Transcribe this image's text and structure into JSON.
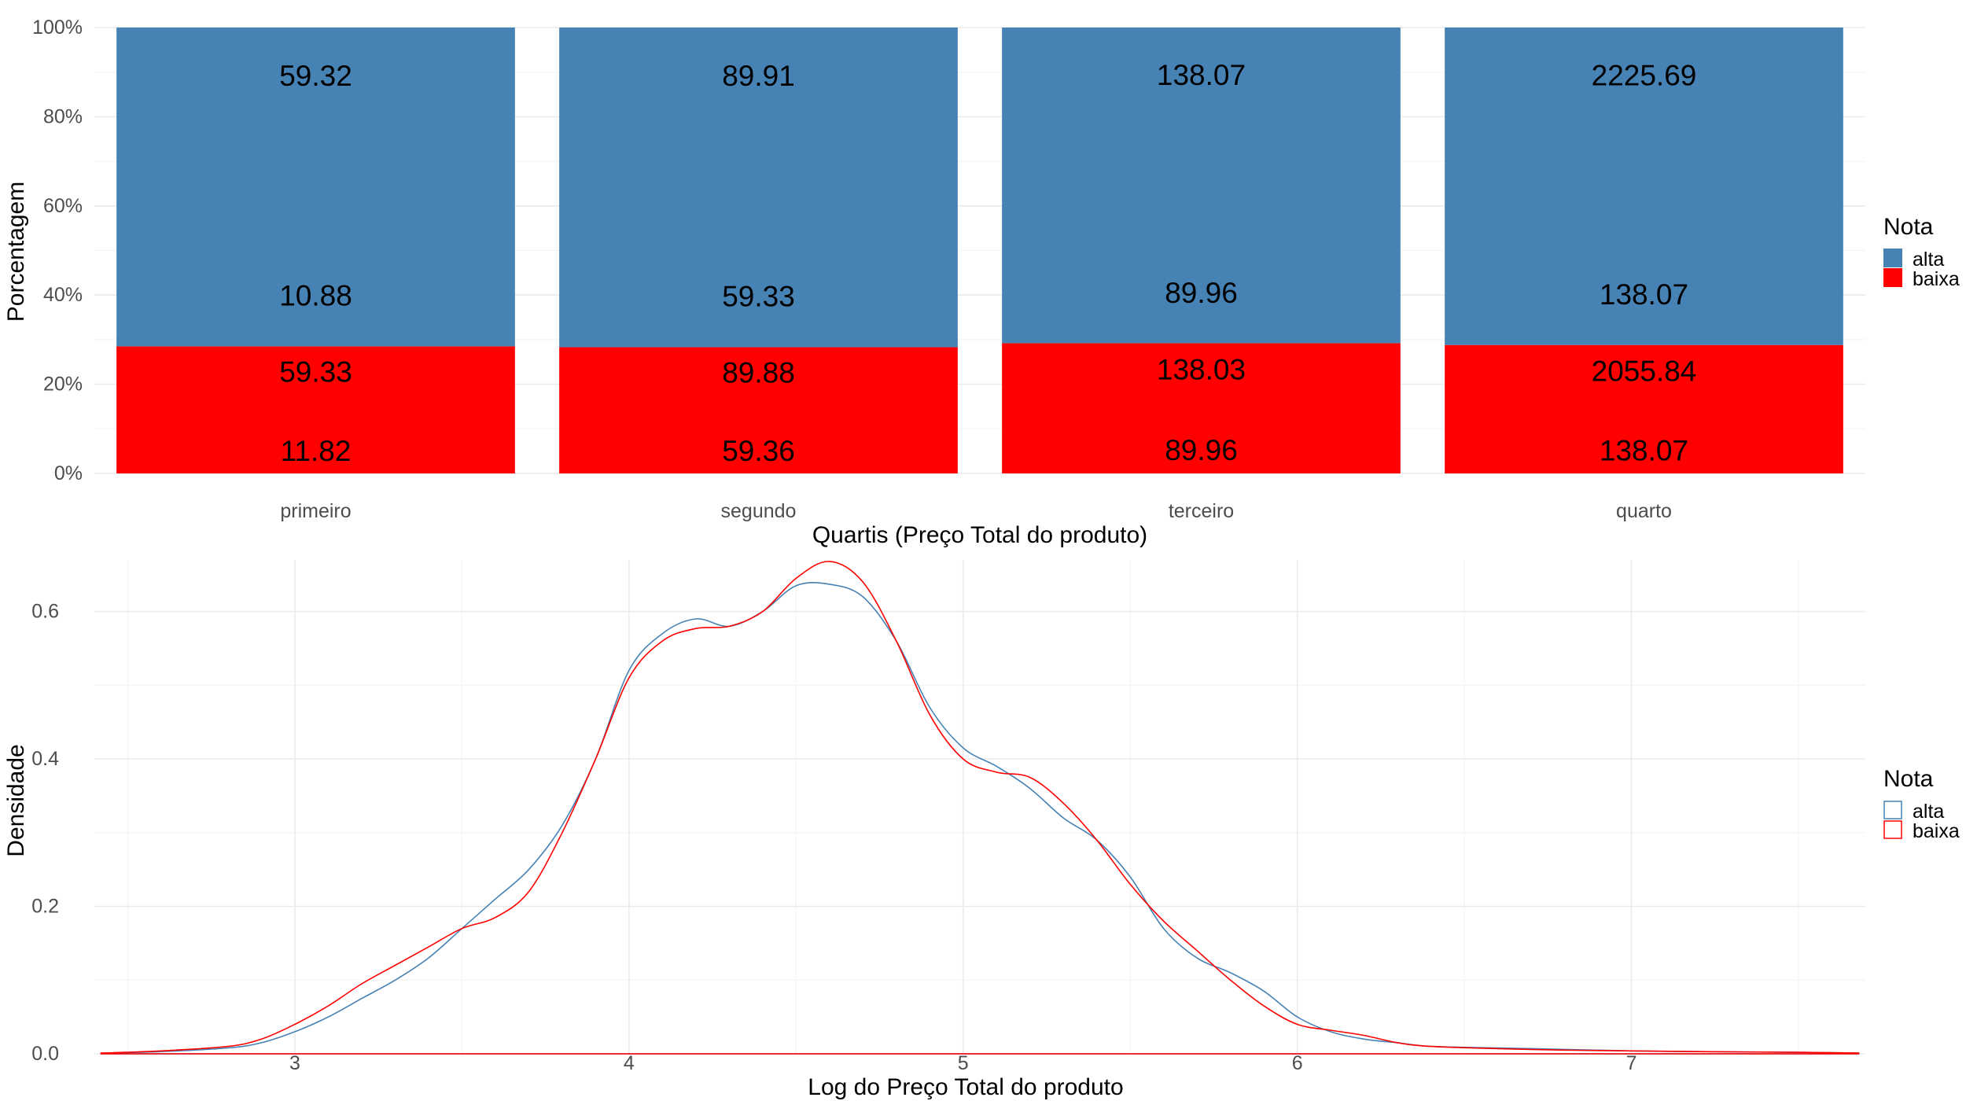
{
  "chart_data": [
    {
      "type": "bar",
      "stacked": "percent",
      "title": "",
      "xlabel": "Quartis (Preço Total do produto)",
      "ylabel": "Porcentagem",
      "ylim": [
        0,
        100
      ],
      "y_ticks": [
        "0%",
        "20%",
        "40%",
        "60%",
        "80%",
        "100%"
      ],
      "y_tick_values": [
        0,
        20,
        40,
        60,
        80,
        100
      ],
      "categories": [
        "primeiro",
        "segundo",
        "terceiro",
        "quarto"
      ],
      "series": [
        {
          "name": "baixa",
          "color": "#ff0000",
          "values": [
            28.5,
            28.3,
            29.2,
            28.8
          ],
          "labels": [
            [
              "11.82",
              "59.33"
            ],
            [
              "59.36",
              "89.88"
            ],
            [
              "89.96",
              "138.03"
            ],
            [
              "138.07",
              "2055.84"
            ]
          ]
        },
        {
          "name": "alta",
          "color": "#4682b4",
          "values": [
            71.5,
            71.7,
            70.8,
            71.2
          ],
          "labels": [
            [
              "10.88",
              "59.32"
            ],
            [
              "59.33",
              "89.91"
            ],
            [
              "89.96",
              "138.07"
            ],
            [
              "138.07",
              "2225.69"
            ]
          ]
        }
      ],
      "legend": {
        "title": "Nota",
        "position": "right",
        "entries": [
          {
            "label": "alta",
            "color": "#4682b4"
          },
          {
            "label": "baixa",
            "color": "#ff0000"
          }
        ]
      },
      "grid": true
    },
    {
      "type": "line",
      "subtype": "density",
      "title": "",
      "xlabel": "Log do Preço Total do produto",
      "ylabel": "Densidade",
      "xlim": [
        2.4,
        7.7
      ],
      "ylim": [
        0,
        0.67
      ],
      "x_ticks": [
        "3",
        "4",
        "5",
        "6",
        "7"
      ],
      "x_tick_values": [
        3,
        4,
        5,
        6,
        7
      ],
      "y_ticks": [
        "0.0",
        "0.2",
        "0.4",
        "0.6"
      ],
      "y_tick_values": [
        0,
        0.2,
        0.4,
        0.6
      ],
      "series": [
        {
          "name": "alta",
          "color": "#4682b4",
          "x": [
            2.42,
            2.6,
            2.8,
            2.9,
            3.0,
            3.1,
            3.2,
            3.3,
            3.4,
            3.5,
            3.6,
            3.7,
            3.8,
            3.9,
            4.0,
            4.1,
            4.2,
            4.3,
            4.4,
            4.5,
            4.6,
            4.7,
            4.8,
            4.9,
            5.0,
            5.1,
            5.2,
            5.3,
            5.4,
            5.5,
            5.6,
            5.7,
            5.8,
            5.9,
            6.0,
            6.1,
            6.2,
            6.3,
            6.4,
            6.6,
            6.8,
            7.0,
            7.2,
            7.5,
            7.68
          ],
          "y": [
            0.001,
            0.003,
            0.008,
            0.015,
            0.03,
            0.05,
            0.075,
            0.1,
            0.13,
            0.17,
            0.21,
            0.25,
            0.31,
            0.4,
            0.52,
            0.57,
            0.59,
            0.58,
            0.6,
            0.635,
            0.637,
            0.62,
            0.56,
            0.47,
            0.415,
            0.39,
            0.36,
            0.32,
            0.29,
            0.24,
            0.17,
            0.13,
            0.11,
            0.085,
            0.05,
            0.03,
            0.02,
            0.015,
            0.01,
            0.008,
            0.006,
            0.004,
            0.003,
            0.002,
            0.001
          ]
        },
        {
          "name": "baixa",
          "color": "#ff0000",
          "x": [
            2.42,
            2.6,
            2.8,
            2.9,
            3.0,
            3.1,
            3.2,
            3.3,
            3.4,
            3.5,
            3.6,
            3.7,
            3.8,
            3.9,
            4.0,
            4.1,
            4.2,
            4.3,
            4.4,
            4.5,
            4.6,
            4.7,
            4.8,
            4.9,
            5.0,
            5.1,
            5.2,
            5.3,
            5.4,
            5.5,
            5.6,
            5.7,
            5.8,
            5.9,
            6.0,
            6.1,
            6.2,
            6.3,
            6.4,
            6.6,
            6.8,
            7.0,
            7.2,
            7.5,
            7.68
          ],
          "y": [
            0.001,
            0.004,
            0.01,
            0.02,
            0.04,
            0.065,
            0.095,
            0.12,
            0.145,
            0.17,
            0.185,
            0.22,
            0.3,
            0.4,
            0.51,
            0.56,
            0.577,
            0.58,
            0.6,
            0.645,
            0.668,
            0.64,
            0.56,
            0.46,
            0.4,
            0.382,
            0.375,
            0.34,
            0.29,
            0.23,
            0.18,
            0.14,
            0.1,
            0.065,
            0.04,
            0.032,
            0.025,
            0.015,
            0.01,
            0.007,
            0.005,
            0.004,
            0.003,
            0.002,
            0.001
          ]
        }
      ],
      "legend": {
        "title": "Nota",
        "position": "right",
        "entries": [
          {
            "label": "alta",
            "color": "#4682b4"
          },
          {
            "label": "baixa",
            "color": "#ff0000"
          }
        ]
      },
      "grid": true
    }
  ]
}
